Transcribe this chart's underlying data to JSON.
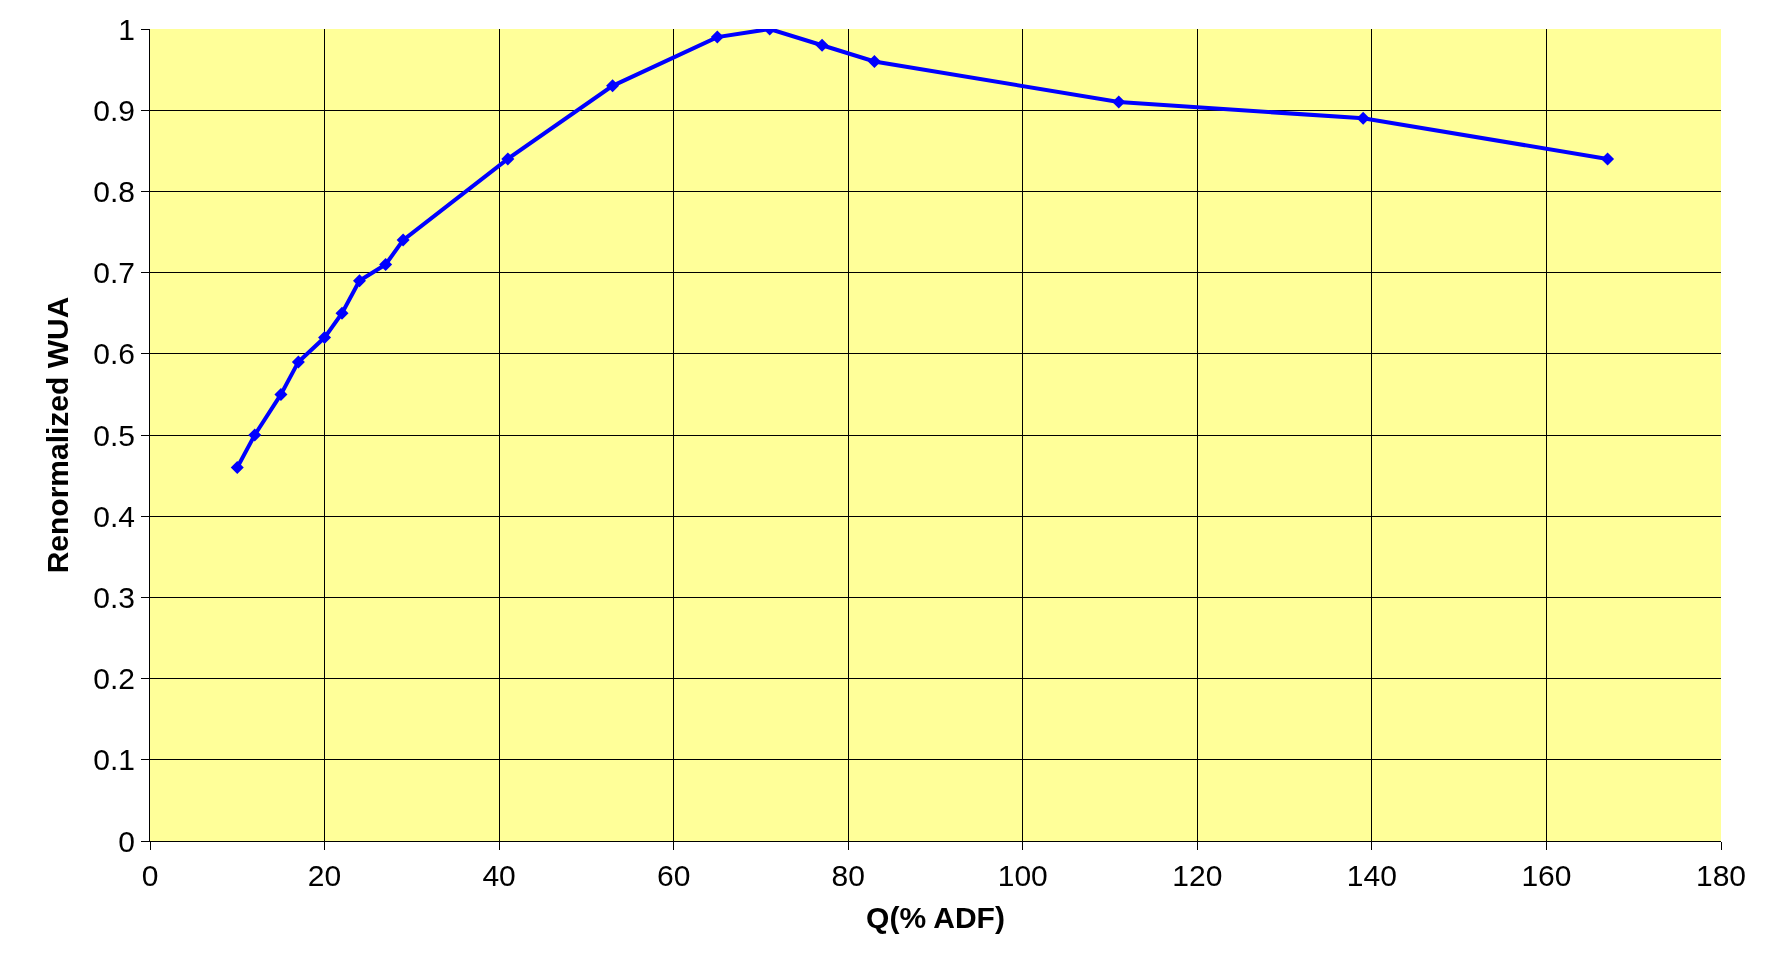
{
  "chart_data": {
    "type": "line",
    "xlabel": "Q(% ADF)",
    "ylabel": "Renormalized WUA",
    "x": [
      10,
      12,
      15,
      17,
      20,
      22,
      24,
      27,
      29,
      41,
      53,
      65,
      71,
      77,
      83,
      111,
      139,
      167
    ],
    "series": [
      {
        "color": "#0000ff",
        "values": [
          0.46,
          0.5,
          0.55,
          0.59,
          0.62,
          0.65,
          0.69,
          0.71,
          0.74,
          0.84,
          0.93,
          0.99,
          1.0,
          0.98,
          0.96,
          0.91,
          0.89,
          0.84
        ]
      }
    ],
    "xlim": [
      0,
      180
    ],
    "xticks": [
      0,
      20,
      40,
      60,
      80,
      100,
      120,
      140,
      160,
      180
    ],
    "ylim": [
      0,
      1
    ],
    "yticks": [
      0,
      0.1,
      0.2,
      0.3,
      0.4,
      0.5,
      0.6,
      0.7,
      0.8,
      0.9,
      1
    ],
    "grid": true,
    "marker": "diamond",
    "line_style": "solid",
    "legend": false
  }
}
